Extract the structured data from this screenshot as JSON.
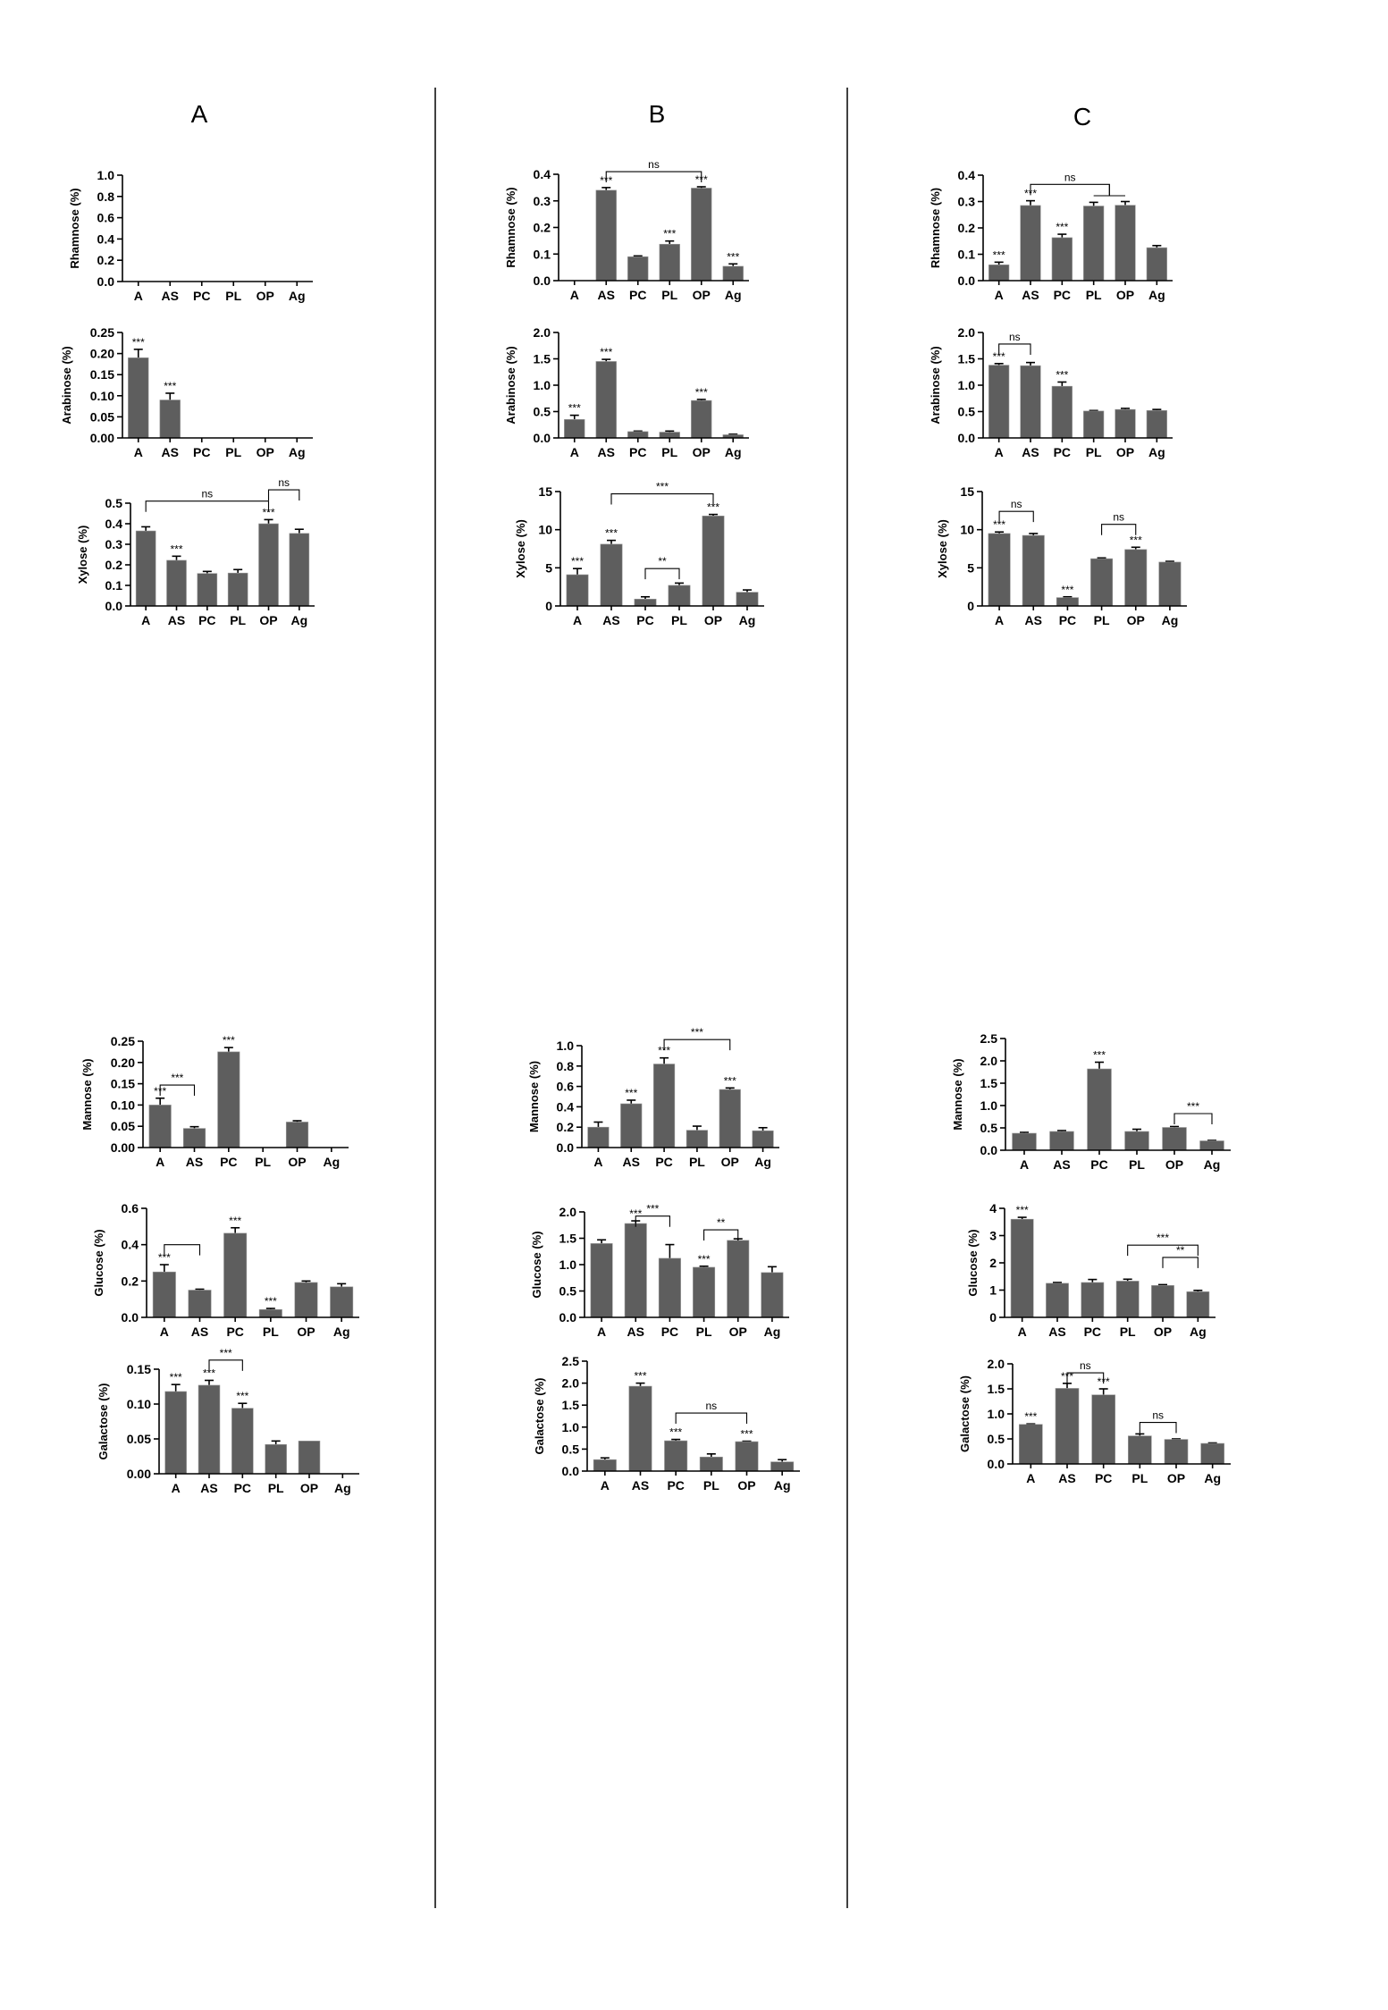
{
  "panels": [
    "A",
    "B",
    "C"
  ],
  "colors": {
    "bar": "#5e5e5e",
    "axis": "#000000"
  },
  "chart_data": [
    {
      "type": "bar",
      "panel": "A",
      "ylabel": "Rhamnose (%)",
      "ylim": [
        0,
        1.0
      ],
      "yticks": [
        "0.0",
        "0.2",
        "0.4",
        "0.6",
        "0.8",
        "1.0"
      ],
      "categories": [
        "A",
        "AS",
        "PC",
        "PL",
        "OP",
        "Ag"
      ],
      "values": [
        0,
        0,
        0,
        0,
        0,
        0
      ],
      "errors": [
        0,
        0,
        0,
        0,
        0,
        0
      ],
      "marks": [
        "",
        "",
        "",
        "",
        "",
        ""
      ],
      "brackets": []
    },
    {
      "type": "bar",
      "panel": "A",
      "ylabel": "Arabinose (%)",
      "ylim": [
        0,
        0.25
      ],
      "yticks": [
        "0.00",
        "0.05",
        "0.10",
        "0.15",
        "0.20",
        "0.25"
      ],
      "categories": [
        "A",
        "AS",
        "PC",
        "PL",
        "OP",
        "Ag"
      ],
      "values": [
        0.19,
        0.09,
        0,
        0,
        0,
        0
      ],
      "errors": [
        0.02,
        0.016,
        0,
        0,
        0,
        0
      ],
      "marks": [
        "***",
        "***",
        "",
        "",
        "",
        ""
      ],
      "brackets": []
    },
    {
      "type": "bar",
      "panel": "A",
      "ylabel": "Xylose (%)",
      "ylim": [
        0,
        0.5
      ],
      "yticks": [
        "0.0",
        "0.1",
        "0.2",
        "0.3",
        "0.4",
        "0.5"
      ],
      "categories": [
        "A",
        "AS",
        "PC",
        "PL",
        "OP",
        "Ag"
      ],
      "values": [
        0.365,
        0.222,
        0.158,
        0.16,
        0.4,
        0.353
      ],
      "errors": [
        0.02,
        0.02,
        0.01,
        0.017,
        0.02,
        0.02
      ],
      "marks": [
        "",
        "***",
        "",
        "",
        "***",
        ""
      ],
      "brackets": [
        {
          "from": 0,
          "to": 4,
          "y": 0.51,
          "label": "ns"
        },
        {
          "from": 4,
          "to": 5,
          "y": 0.565,
          "label": "ns"
        }
      ]
    },
    {
      "type": "bar",
      "panel": "A",
      "ylabel": "Mannose (%)",
      "ylim": [
        0,
        0.25
      ],
      "yticks": [
        "0.00",
        "0.05",
        "0.10",
        "0.15",
        "0.20",
        "0.25"
      ],
      "categories": [
        "A",
        "AS",
        "PC",
        "PL",
        "OP",
        "Ag"
      ],
      "values": [
        0.1,
        0.045,
        0.225,
        0,
        0.06,
        0
      ],
      "errors": [
        0.016,
        0.004,
        0.01,
        0,
        0.003,
        0
      ],
      "marks": [
        "***",
        "",
        "***",
        "",
        "",
        ""
      ],
      "brackets": [
        {
          "from": 0,
          "to": 1,
          "y": 0.147,
          "label": "***"
        }
      ]
    },
    {
      "type": "bar",
      "panel": "A",
      "ylabel": "Glucose (%)",
      "ylim": [
        0,
        0.6
      ],
      "yticks": [
        "0.0",
        "0.2",
        "0.4",
        "0.6"
      ],
      "categories": [
        "A",
        "AS",
        "PC",
        "PL",
        "OP",
        "Ag"
      ],
      "values": [
        0.25,
        0.15,
        0.463,
        0.043,
        0.192,
        0.168
      ],
      "errors": [
        0.04,
        0.005,
        0.03,
        0.006,
        0.008,
        0.017
      ],
      "marks": [
        "***",
        "",
        "***",
        "***",
        "",
        ""
      ],
      "brackets": [
        {
          "from": 0,
          "to": 1,
          "y": 0.4,
          "label": ""
        }
      ]
    },
    {
      "type": "bar",
      "panel": "A",
      "ylabel": "Galactose (%)",
      "ylim": [
        0,
        0.15
      ],
      "yticks": [
        "0.00",
        "0.05",
        "0.10",
        "0.15"
      ],
      "categories": [
        "A",
        "AS",
        "PC",
        "PL",
        "OP",
        "Ag"
      ],
      "values": [
        0.118,
        0.127,
        0.094,
        0.042,
        0.047,
        0
      ],
      "errors": [
        0.01,
        0.007,
        0.007,
        0.005,
        0,
        0
      ],
      "marks": [
        "***",
        "***",
        "***",
        "",
        "",
        ""
      ],
      "brackets": [
        {
          "from": 1,
          "to": 2,
          "y": 0.163,
          "label": "***"
        }
      ]
    },
    {
      "type": "bar",
      "panel": "B",
      "ylabel": "Rhamnose (%)",
      "ylim": [
        0,
        0.4
      ],
      "yticks": [
        "0.0",
        "0.1",
        "0.2",
        "0.3",
        "0.4"
      ],
      "categories": [
        "A",
        "AS",
        "PC",
        "PL",
        "OP",
        "Ag"
      ],
      "values": [
        0,
        0.34,
        0.09,
        0.137,
        0.348,
        0.054
      ],
      "errors": [
        0,
        0.01,
        0.003,
        0.012,
        0.005,
        0.009
      ],
      "marks": [
        "",
        "***",
        "",
        "***",
        "***",
        "***"
      ],
      "brackets": [
        {
          "from": 1,
          "to": 4,
          "y": 0.41,
          "label": "ns"
        }
      ]
    },
    {
      "type": "bar",
      "panel": "B",
      "ylabel": "Arabinose (%)",
      "ylim": [
        0,
        2.0
      ],
      "yticks": [
        "0.0",
        "0.5",
        "1.0",
        "1.5",
        "2.0"
      ],
      "categories": [
        "A",
        "AS",
        "PC",
        "PL",
        "OP",
        "Ag"
      ],
      "values": [
        0.35,
        1.45,
        0.12,
        0.11,
        0.71,
        0.06
      ],
      "errors": [
        0.08,
        0.04,
        0.01,
        0.02,
        0.02,
        0.01
      ],
      "marks": [
        "***",
        "***",
        "",
        "",
        "***",
        ""
      ],
      "brackets": []
    },
    {
      "type": "bar",
      "panel": "B",
      "ylabel": "Xylose (%)",
      "ylim": [
        0,
        15
      ],
      "yticks": [
        "0",
        "5",
        "10",
        "15"
      ],
      "categories": [
        "A",
        "AS",
        "PC",
        "PL",
        "OP",
        "Ag"
      ],
      "values": [
        4.1,
        8.1,
        0.9,
        2.7,
        11.8,
        1.8
      ],
      "errors": [
        0.8,
        0.5,
        0.3,
        0.3,
        0.2,
        0.3
      ],
      "marks": [
        "***",
        "***",
        "",
        "",
        "***",
        ""
      ],
      "brackets": [
        {
          "from": 1,
          "to": 4,
          "y": 14.7,
          "label": "***"
        },
        {
          "from": 2,
          "to": 3,
          "y": 4.9,
          "label": "**"
        }
      ]
    },
    {
      "type": "bar",
      "panel": "B",
      "ylabel": "Mannose (%)",
      "ylim": [
        0,
        1.0
      ],
      "yticks": [
        "0.0",
        "0.2",
        "0.4",
        "0.6",
        "0.8",
        "1.0"
      ],
      "categories": [
        "A",
        "AS",
        "PC",
        "PL",
        "OP",
        "Ag"
      ],
      "values": [
        0.2,
        0.43,
        0.82,
        0.17,
        0.57,
        0.165
      ],
      "errors": [
        0.05,
        0.035,
        0.06,
        0.04,
        0.015,
        0.03
      ],
      "marks": [
        "",
        "***",
        "***",
        "",
        "***",
        ""
      ],
      "brackets": [
        {
          "from": 2,
          "to": 4,
          "y": 1.06,
          "label": "***"
        }
      ]
    },
    {
      "type": "bar",
      "panel": "B",
      "ylabel": "Glucose (%)",
      "ylim": [
        0,
        2.0
      ],
      "yticks": [
        "0.0",
        "0.5",
        "1.0",
        "1.5",
        "2.0"
      ],
      "categories": [
        "A",
        "AS",
        "PC",
        "PL",
        "OP",
        "Ag"
      ],
      "values": [
        1.4,
        1.78,
        1.12,
        0.95,
        1.46,
        0.85
      ],
      "errors": [
        0.07,
        0.05,
        0.26,
        0.02,
        0.03,
        0.11
      ],
      "marks": [
        "",
        "***",
        "",
        "***",
        "",
        ""
      ],
      "brackets": [
        {
          "from": 1,
          "to": 2,
          "y": 1.92,
          "label": "***"
        },
        {
          "from": 3,
          "to": 4,
          "y": 1.66,
          "label": "**"
        }
      ]
    },
    {
      "type": "bar",
      "panel": "B",
      "ylabel": "Galactose (%)",
      "ylim": [
        0,
        2.5
      ],
      "yticks": [
        "0.0",
        "0.5",
        "1.0",
        "1.5",
        "2.0",
        "2.5"
      ],
      "categories": [
        "A",
        "AS",
        "PC",
        "PL",
        "OP",
        "Ag"
      ],
      "values": [
        0.26,
        1.93,
        0.69,
        0.32,
        0.67,
        0.21
      ],
      "errors": [
        0.04,
        0.07,
        0.03,
        0.07,
        0.01,
        0.05
      ],
      "marks": [
        "",
        "***",
        "***",
        "",
        "***",
        ""
      ],
      "brackets": [
        {
          "from": 2,
          "to": 4,
          "y": 1.32,
          "label": "ns"
        }
      ]
    },
    {
      "type": "bar",
      "panel": "C",
      "ylabel": "Rhamnose (%)",
      "ylim": [
        0,
        0.4
      ],
      "yticks": [
        "0.0",
        "0.1",
        "0.2",
        "0.3",
        "0.4"
      ],
      "categories": [
        "A",
        "AS",
        "PC",
        "PL",
        "OP",
        "Ag"
      ],
      "values": [
        0.06,
        0.285,
        0.163,
        0.283,
        0.286,
        0.125
      ],
      "errors": [
        0.01,
        0.018,
        0.013,
        0.014,
        0.014,
        0.008
      ],
      "marks": [
        "***",
        "***",
        "***",
        "",
        "",
        ""
      ],
      "brackets": [
        {
          "from": 1,
          "to": 3.5,
          "y": 0.365,
          "label": "ns",
          "sub": [
            3,
            4
          ],
          "sub_y": 0.322
        }
      ]
    },
    {
      "type": "bar",
      "panel": "C",
      "ylabel": "Arabinose (%)",
      "ylim": [
        0,
        2.0
      ],
      "yticks": [
        "0.0",
        "0.5",
        "1.0",
        "1.5",
        "2.0"
      ],
      "categories": [
        "A",
        "AS",
        "PC",
        "PL",
        "OP",
        "Ag"
      ],
      "values": [
        1.38,
        1.37,
        0.98,
        0.51,
        0.54,
        0.52
      ],
      "errors": [
        0.03,
        0.06,
        0.08,
        0.01,
        0.02,
        0.02
      ],
      "marks": [
        "***",
        "",
        "***",
        "",
        "",
        ""
      ],
      "brackets": [
        {
          "from": 0,
          "to": 1,
          "y": 1.78,
          "label": "ns"
        }
      ]
    },
    {
      "type": "bar",
      "panel": "C",
      "ylabel": "Xylose (%)",
      "ylim": [
        0,
        15
      ],
      "yticks": [
        "0",
        "5",
        "10",
        "15"
      ],
      "categories": [
        "A",
        "AS",
        "PC",
        "PL",
        "OP",
        "Ag"
      ],
      "values": [
        9.5,
        9.25,
        1.1,
        6.2,
        7.4,
        5.75
      ],
      "errors": [
        0.2,
        0.25,
        0.1,
        0.1,
        0.3,
        0.1
      ],
      "marks": [
        "***",
        "",
        "***",
        "",
        "***",
        ""
      ],
      "brackets": [
        {
          "from": 0,
          "to": 1,
          "y": 12.4,
          "label": "ns"
        },
        {
          "from": 3,
          "to": 4,
          "y": 10.7,
          "label": "ns"
        }
      ]
    },
    {
      "type": "bar",
      "panel": "C",
      "ylabel": "Mannose (%)",
      "ylim": [
        0,
        2.5
      ],
      "yticks": [
        "0.0",
        "0.5",
        "1.0",
        "1.5",
        "2.0",
        "2.5"
      ],
      "categories": [
        "A",
        "AS",
        "PC",
        "PL",
        "OP",
        "Ag"
      ],
      "values": [
        0.38,
        0.42,
        1.82,
        0.42,
        0.51,
        0.21
      ],
      "errors": [
        0.02,
        0.02,
        0.15,
        0.05,
        0.02,
        0.01
      ],
      "marks": [
        "",
        "",
        "***",
        "",
        "",
        ""
      ],
      "brackets": [
        {
          "from": 4,
          "to": 5,
          "y": 0.82,
          "label": "***"
        }
      ]
    },
    {
      "type": "bar",
      "panel": "C",
      "ylabel": "Glucose (%)",
      "ylim": [
        0,
        4
      ],
      "yticks": [
        "0",
        "1",
        "2",
        "3",
        "4"
      ],
      "categories": [
        "A",
        "AS",
        "PC",
        "PL",
        "OP",
        "Ag"
      ],
      "values": [
        3.6,
        1.25,
        1.28,
        1.33,
        1.17,
        0.94
      ],
      "errors": [
        0.07,
        0.03,
        0.11,
        0.07,
        0.03,
        0.05
      ],
      "marks": [
        "***",
        "",
        "",
        "",
        "",
        ""
      ],
      "brackets": [
        {
          "from": 3,
          "to": 5,
          "y": 2.65,
          "label": "***"
        },
        {
          "from": 4,
          "to": 5,
          "y": 2.2,
          "label": "**"
        }
      ]
    },
    {
      "type": "bar",
      "panel": "C",
      "ylabel": "Galactose (%)",
      "ylim": [
        0,
        2.0
      ],
      "yticks": [
        "0.0",
        "0.5",
        "1.0",
        "1.5",
        "2.0"
      ],
      "categories": [
        "A",
        "AS",
        "PC",
        "PL",
        "OP",
        "Ag"
      ],
      "values": [
        0.79,
        1.51,
        1.38,
        0.56,
        0.49,
        0.41
      ],
      "errors": [
        0.01,
        0.1,
        0.12,
        0.04,
        0.01,
        0.01
      ],
      "marks": [
        "***",
        "***",
        "***",
        "",
        "",
        ""
      ],
      "brackets": [
        {
          "from": 1,
          "to": 2,
          "y": 1.82,
          "label": "ns"
        },
        {
          "from": 3,
          "to": 4,
          "y": 0.83,
          "label": "ns"
        }
      ]
    }
  ]
}
